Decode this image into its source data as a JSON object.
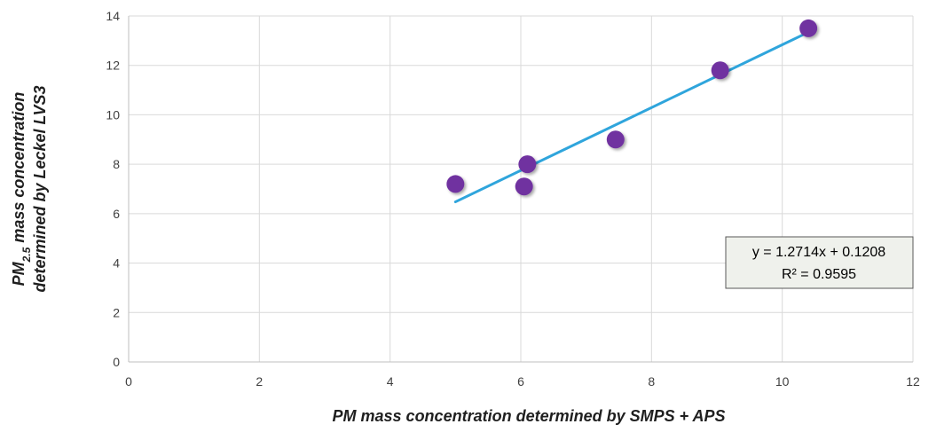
{
  "chart_data": {
    "type": "scatter",
    "title": "",
    "xlabel": "PM mass concentration determined by SMPS + APS",
    "ylabel": {
      "line1_main": "PM",
      "line1_sub": "2.5",
      "line1_rest": " mass concentration",
      "line2": "determined by Leckel LVS3"
    },
    "xlim": [
      0,
      12
    ],
    "ylim": [
      0,
      14
    ],
    "x_ticks": [
      "0",
      "2",
      "4",
      "6",
      "8",
      "10",
      "12"
    ],
    "y_ticks": [
      "0",
      "2",
      "4",
      "6",
      "8",
      "10",
      "12",
      "14"
    ],
    "grid": true,
    "points": [
      {
        "x": 5.0,
        "y": 7.2
      },
      {
        "x": 6.05,
        "y": 7.1
      },
      {
        "x": 6.1,
        "y": 8.0
      },
      {
        "x": 7.45,
        "y": 9.0
      },
      {
        "x": 9.05,
        "y": 11.8
      },
      {
        "x": 10.4,
        "y": 13.5
      }
    ],
    "trendline": {
      "slope": 1.2714,
      "intercept": 0.1208,
      "x_range": [
        5.0,
        10.4
      ]
    },
    "annotation": {
      "equation": "y = 1.2714x + 0.1208",
      "r2": "R² = 0.9595"
    },
    "colors": {
      "marker": "#7030a0",
      "trendline": "#2fa5dc",
      "grid": "#d9d9d9",
      "annotation_bg": "#eff1ec",
      "annotation_border": "#595959"
    }
  }
}
